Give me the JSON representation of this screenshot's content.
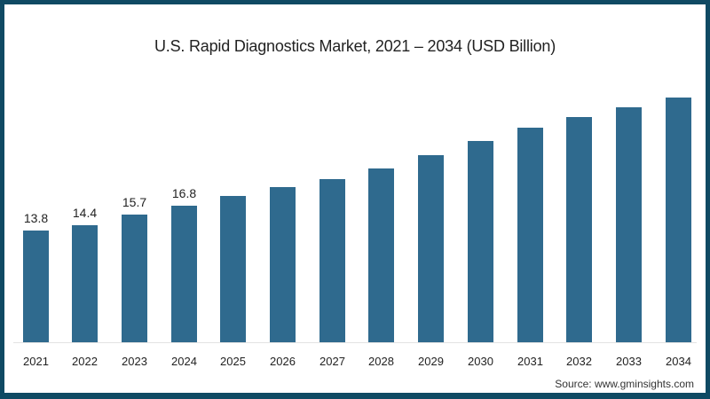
{
  "title": "U.S. Rapid Diagnostics Market, 2021 – 2034 (USD Billion)",
  "source": "Source: www.gminsights.com",
  "colors": {
    "bar": "#2f6a8e",
    "border": "#0f4a63",
    "background": "#ffffff"
  },
  "chart_data": {
    "type": "bar",
    "title": "U.S. Rapid Diagnostics Market, 2021 – 2034 (USD Billion)",
    "xlabel": "",
    "ylabel": "USD Billion",
    "categories": [
      "2021",
      "2022",
      "2023",
      "2024",
      "2025",
      "2026",
      "2027",
      "2028",
      "2029",
      "2030",
      "2031",
      "2032",
      "2033",
      "2034"
    ],
    "values": [
      13.8,
      14.4,
      15.7,
      16.8,
      18.0,
      19.1,
      20.1,
      21.4,
      23.1,
      24.8,
      26.4,
      27.8,
      29.0,
      30.2
    ],
    "data_labels": [
      "13.8",
      "14.4",
      "15.7",
      "16.8",
      "",
      "",
      "",
      "",
      "",
      "",
      "",
      "",
      "",
      ""
    ],
    "grid": false,
    "legend": "none",
    "annotations": [
      "Source: www.gminsights.com"
    ]
  }
}
